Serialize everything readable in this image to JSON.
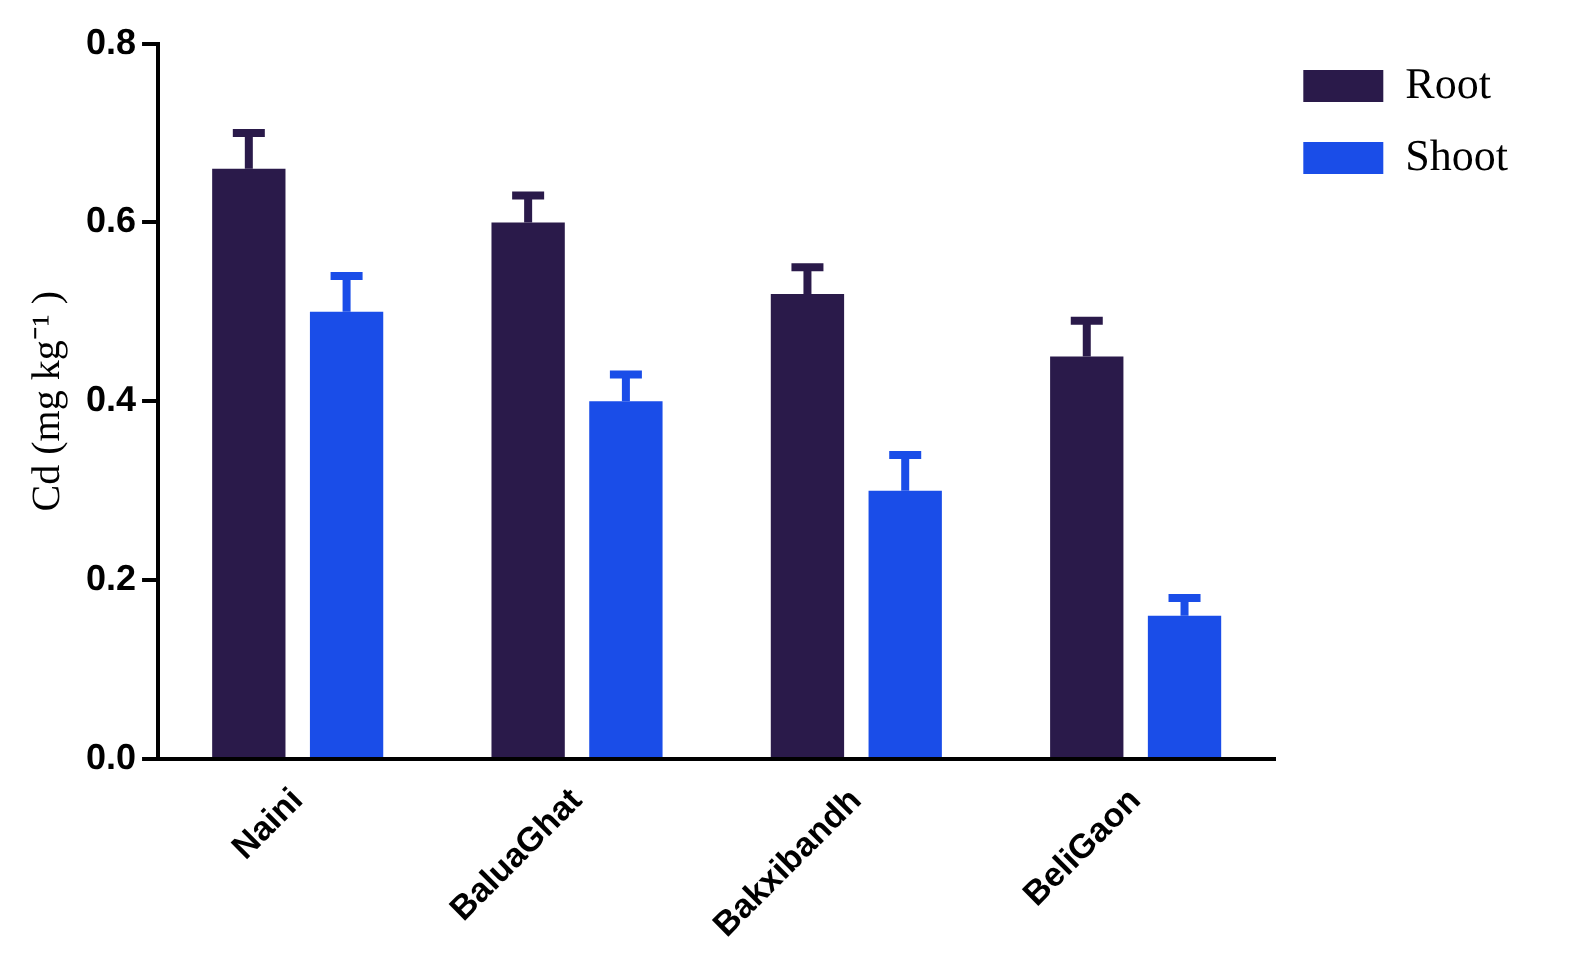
{
  "chart_data": {
    "type": "bar",
    "ylabel": "Cd (mg kg⁻¹ )",
    "categories": [
      "Naini",
      "BaluaGhat",
      "Bakxibandh",
      "BeliGaon"
    ],
    "series": [
      {
        "name": "Root",
        "color": "#2a1a4a",
        "values": [
          0.66,
          0.6,
          0.52,
          0.45
        ],
        "errors": [
          0.04,
          0.03,
          0.03,
          0.04
        ]
      },
      {
        "name": "Shoot",
        "color": "#1a4de8",
        "values": [
          0.5,
          0.4,
          0.3,
          0.16
        ],
        "errors": [
          0.04,
          0.03,
          0.04,
          0.02
        ]
      }
    ],
    "ylim": [
      0,
      0.8
    ],
    "yticks": [
      {
        "value": 0,
        "label": "0.0"
      },
      {
        "value": 0.2,
        "label": "0.2"
      },
      {
        "value": 0.4,
        "label": "0.4"
      },
      {
        "value": 0.6,
        "label": "0.6"
      },
      {
        "value": 0.8,
        "label": "0.8"
      }
    ],
    "grid": false,
    "legend": "top right"
  }
}
